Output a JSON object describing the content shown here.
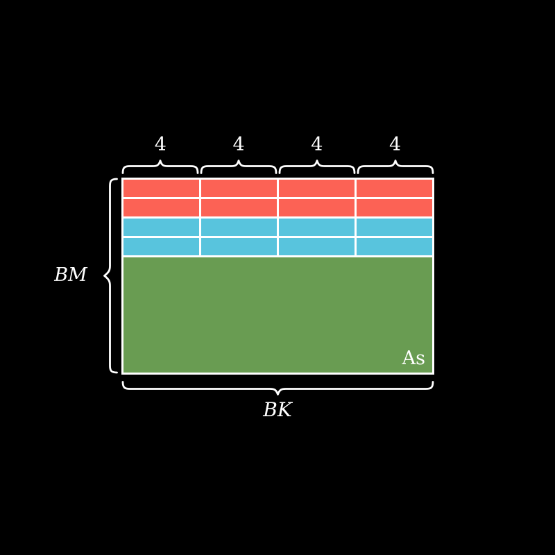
{
  "diagram": {
    "background": "#000000",
    "stroke_color": "#ffffff",
    "top_braces": {
      "labels": [
        "4",
        "4",
        "4",
        "4"
      ]
    },
    "left_brace": {
      "label": "BM"
    },
    "bottom_brace": {
      "label": "BK"
    },
    "matrix": {
      "name_label": "As",
      "columns": 4,
      "red_row_count": 2,
      "blue_row_count": 2,
      "colors": {
        "red": "#FC6255",
        "blue": "#58C4DD",
        "green": "#699C52"
      }
    }
  }
}
